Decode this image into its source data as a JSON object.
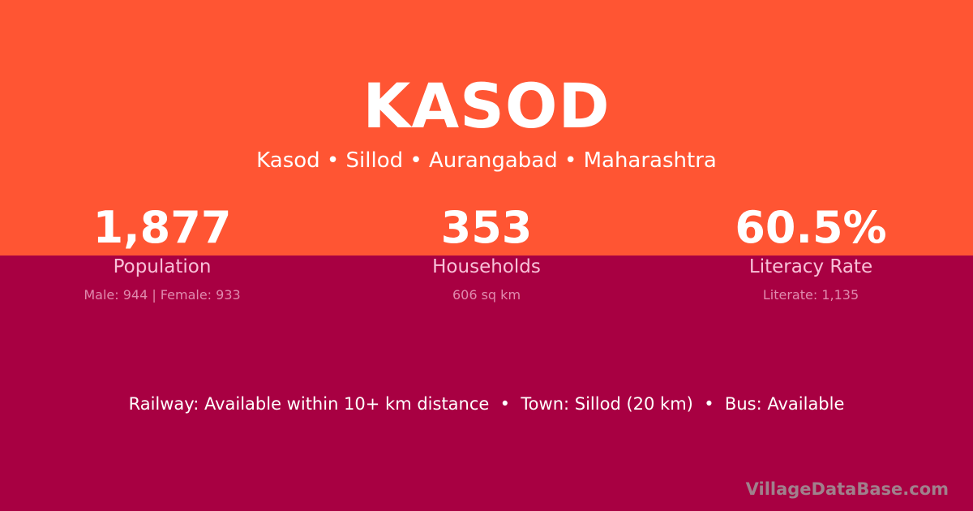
{
  "header": {
    "title": "KASOD",
    "subtitle": "Kasod • Sillod • Aurangabad • Maharashtra"
  },
  "stats": [
    {
      "value": "1,877",
      "label": "Population",
      "detail": "Male: 944 | Female: 933"
    },
    {
      "value": "353",
      "label": "Households",
      "detail": "606 sq km"
    },
    {
      "value": "60.5%",
      "label": "Literacy Rate",
      "detail": "Literate: 1,135"
    }
  ],
  "info": "Railway: Available within 10+ km distance  •  Town: Sillod (20 km)  •  Bus: Available",
  "brand": "VillageDataBase.com",
  "colors": {
    "top": "#ff5533",
    "bottom": "#a80042"
  }
}
